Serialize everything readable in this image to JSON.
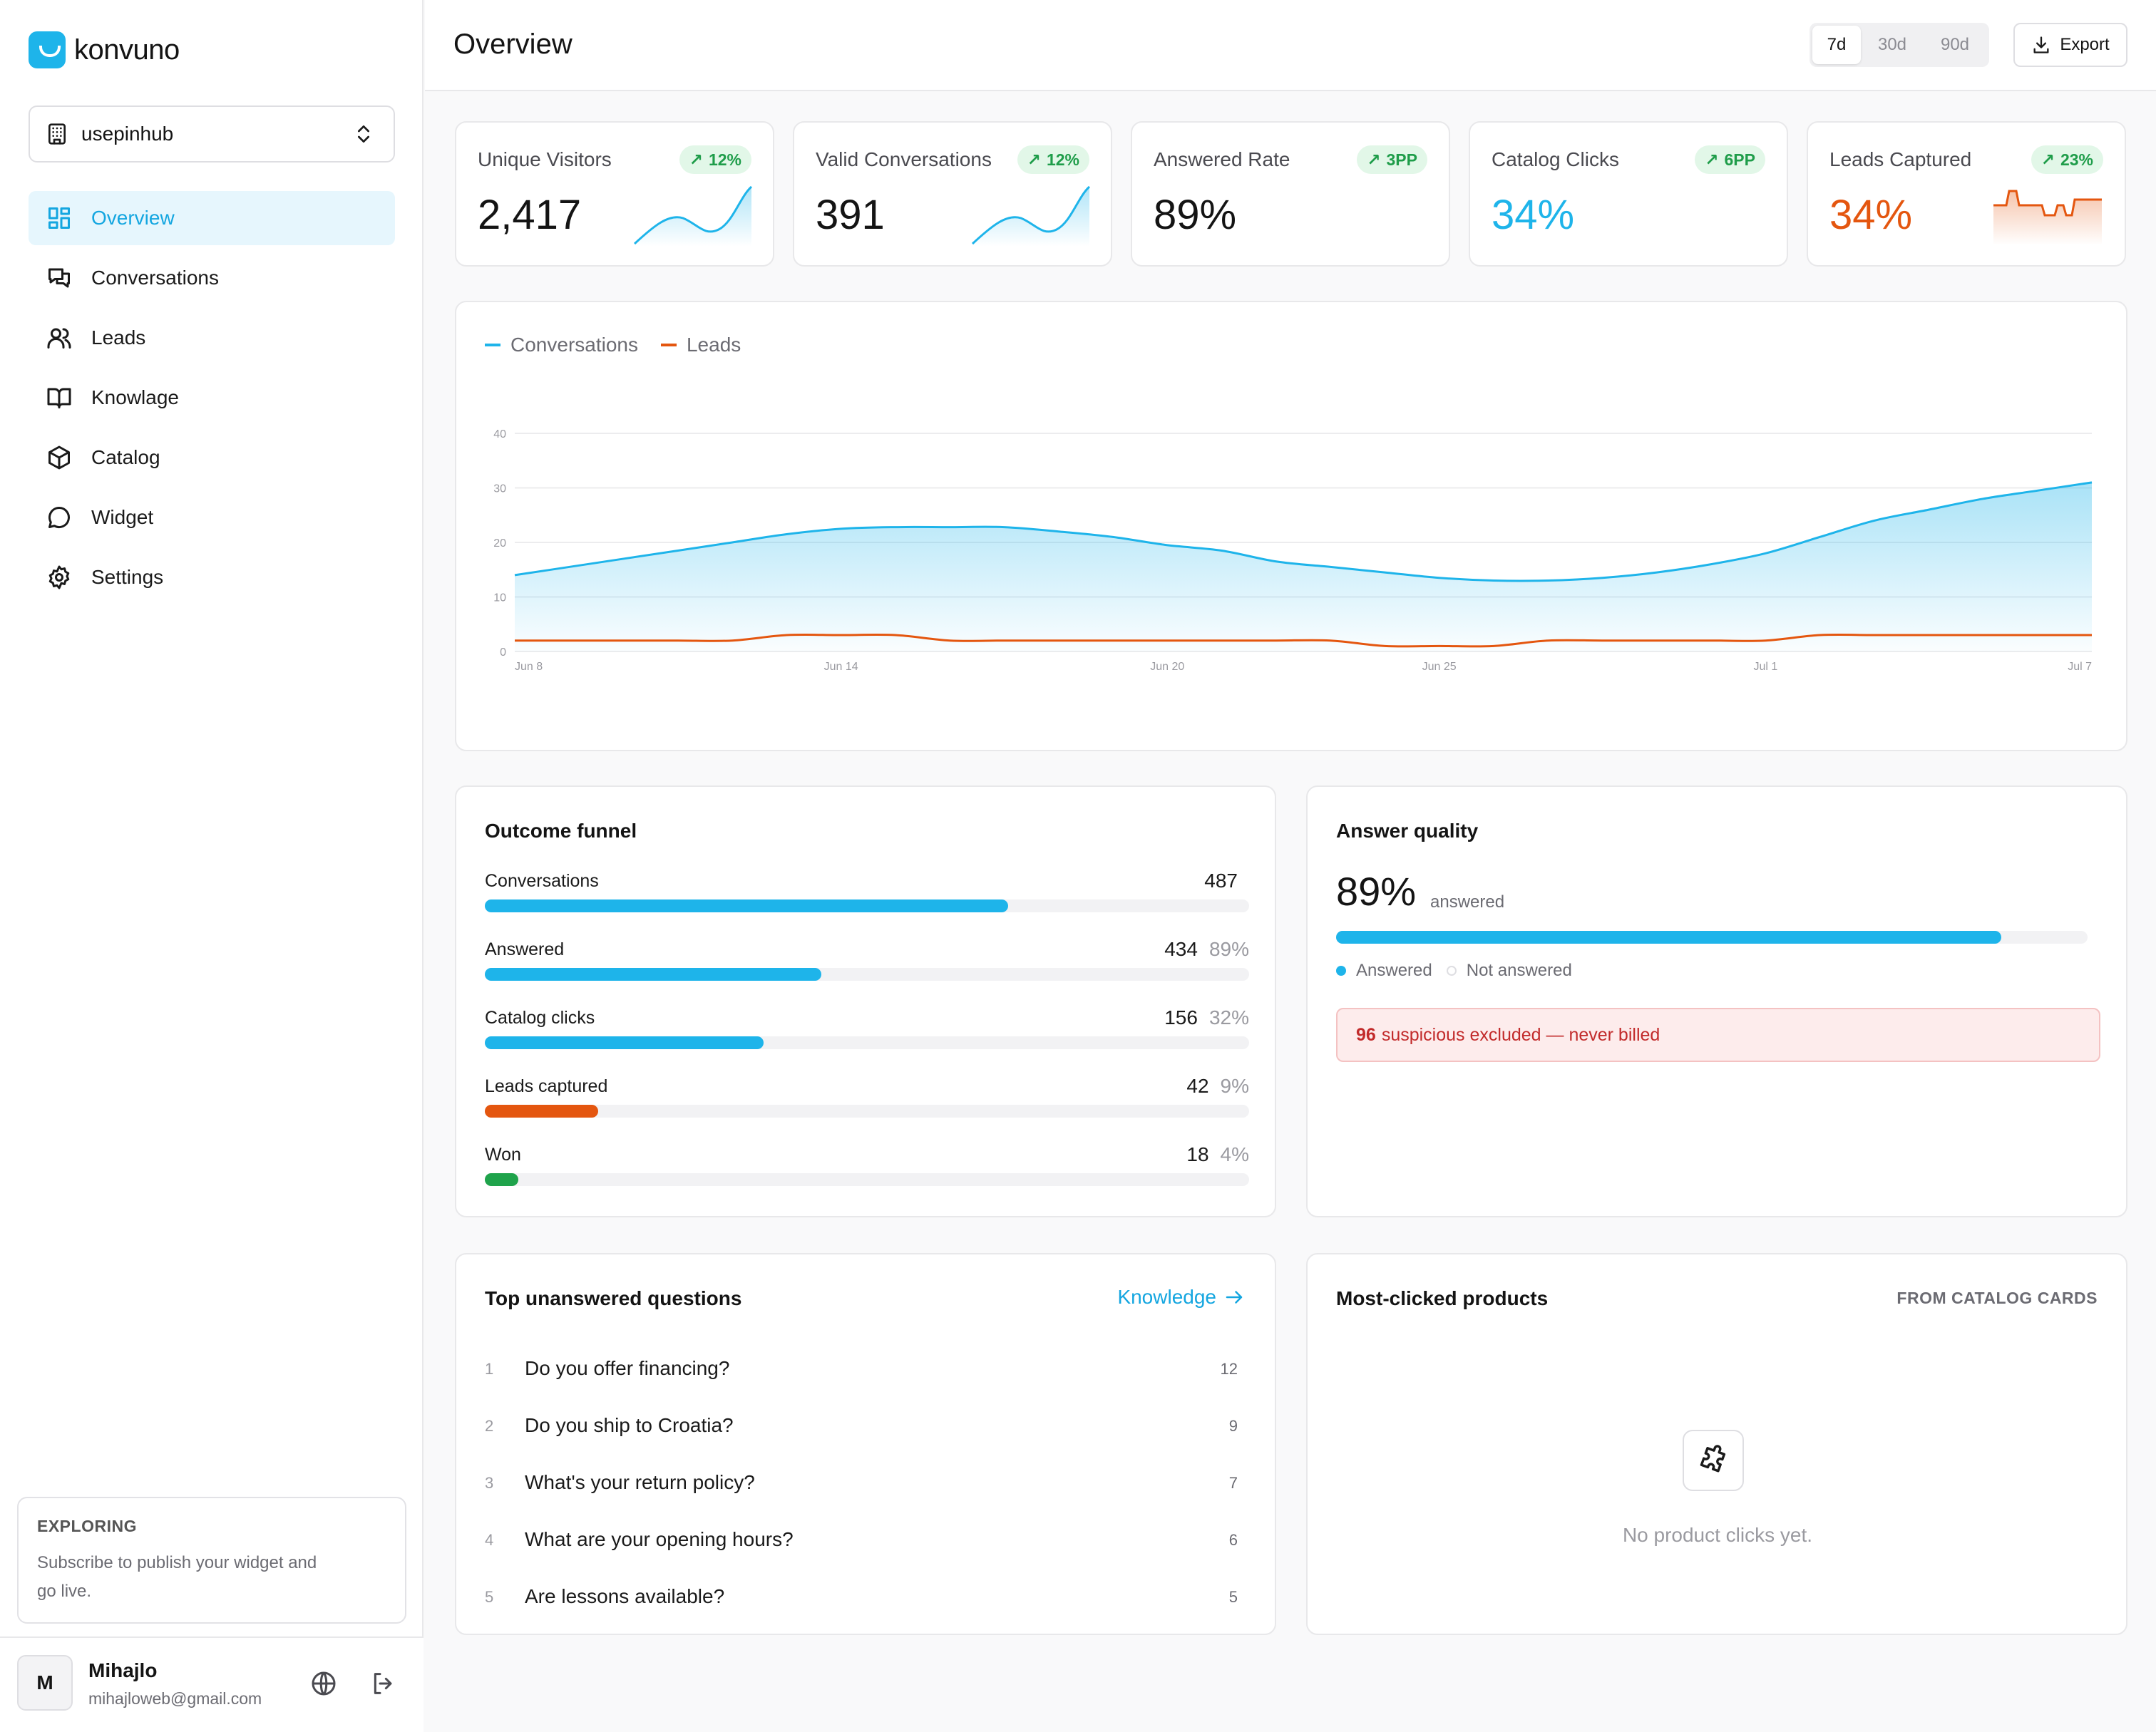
{
  "brand": {
    "name": "konvuno",
    "accent": "#1eb4ea"
  },
  "workspace": {
    "name": "usepinhub",
    "icon": "building-icon"
  },
  "nav": [
    {
      "label": "Overview",
      "icon": "grid-icon",
      "active": true
    },
    {
      "label": "Conversations",
      "icon": "chat-icon",
      "active": false
    },
    {
      "label": "Leads",
      "icon": "users-icon",
      "active": false
    },
    {
      "label": "Knowlage",
      "icon": "book-icon",
      "active": false
    },
    {
      "label": "Catalog",
      "icon": "box-icon",
      "active": false
    },
    {
      "label": "Widget",
      "icon": "message-circle-icon",
      "active": false
    },
    {
      "label": "Settings",
      "icon": "gear-icon",
      "active": false
    }
  ],
  "exploring": {
    "title": "EXPLORING",
    "text": "Subscribe to publish your widget and go live."
  },
  "user": {
    "initial": "M",
    "name": "Mihajlo",
    "email": "mihajloweb@gmail.com"
  },
  "header": {
    "title": "Overview",
    "ranges": [
      {
        "label": "7d",
        "active": true
      },
      {
        "label": "30d",
        "active": false
      },
      {
        "label": "90d",
        "active": false
      }
    ],
    "export_label": "Export"
  },
  "kpis": [
    {
      "title": "Unique Visitors",
      "badge": "12%",
      "value": "2,417",
      "value_color": "#141414",
      "spark_color": "#1eb4ea"
    },
    {
      "title": "Valid Conversations",
      "badge": "12%",
      "value": "391",
      "value_color": "#141414",
      "spark_color": "#1eb4ea"
    },
    {
      "title": "Answered Rate",
      "badge": "3PP",
      "value": "89%",
      "value_color": "#141414",
      "spark_color": ""
    },
    {
      "title": "Catalog Clicks",
      "badge": "6PP",
      "value": "34%",
      "value_color": "#1eb4ea",
      "spark_color": ""
    },
    {
      "title": "Leads Captured",
      "badge": "23%",
      "value": "34%",
      "value_color": "#e4560f",
      "spark_color": "#e4560f"
    }
  ],
  "chart_data": {
    "type": "area",
    "x": [
      "Jun 8",
      "Jun 9",
      "Jun 10",
      "Jun 11",
      "Jun 12",
      "Jun 13",
      "Jun 14",
      "Jun 15",
      "Jun 16",
      "Jun 17",
      "Jun 18",
      "Jun 19",
      "Jun 20",
      "Jun 21",
      "Jun 22",
      "Jun 23",
      "Jun 24",
      "Jun 25",
      "Jun 26",
      "Jun 27",
      "Jun 28",
      "Jun 29",
      "Jun 30",
      "Jul 1",
      "Jul 2",
      "Jul 3",
      "Jul 4",
      "Jul 5",
      "Jul 6",
      "Jul 7"
    ],
    "tick_labels": [
      "Jun 8",
      "Jun 14",
      "Jun 20",
      "Jun 25",
      "Jul 1",
      "Jul 7"
    ],
    "y_ticks": [
      0,
      10,
      20,
      30,
      40
    ],
    "ylim": [
      0,
      40
    ],
    "grid": true,
    "legend": "top-left",
    "series": [
      {
        "name": "Conversations",
        "color": "#1eb4ea",
        "values": [
          14,
          15.5,
          17,
          18.5,
          20,
          21.5,
          22.5,
          22.8,
          22.8,
          22.8,
          22,
          21,
          19.5,
          18.5,
          16.5,
          15.5,
          14.5,
          13.5,
          13,
          13,
          13.5,
          14.5,
          16,
          18,
          21,
          24,
          26,
          28,
          29.5,
          31
        ]
      },
      {
        "name": "Leads",
        "color": "#e4560f",
        "values": [
          2,
          2,
          2,
          2,
          2,
          3,
          3,
          3,
          2,
          2,
          2,
          2,
          2,
          2,
          2,
          2,
          1,
          1,
          1,
          2,
          2,
          2,
          2,
          2,
          3,
          3,
          3,
          3,
          3,
          3
        ]
      }
    ]
  },
  "funnel": {
    "title": "Outcome funnel",
    "rows": [
      {
        "label": "Conversations",
        "value": "487",
        "pct": "",
        "fill": 0.685,
        "color": "#1eb4ea"
      },
      {
        "label": "Answered",
        "value": "434",
        "pct": "89%",
        "fill": 0.44,
        "color": "#1eb4ea"
      },
      {
        "label": "Catalog clicks",
        "value": "156",
        "pct": "32%",
        "fill": 0.365,
        "color": "#1eb4ea"
      },
      {
        "label": "Leads captured",
        "value": "42",
        "pct": "9%",
        "fill": 0.148,
        "color": "#e4560f"
      },
      {
        "label": "Won",
        "value": "18",
        "pct": "4%",
        "fill": 0.044,
        "color": "#1fa34b"
      }
    ]
  },
  "answer_quality": {
    "title": "Answer quality",
    "value": "89%",
    "unit": "answered",
    "fill": 0.885,
    "legend": [
      "Answered",
      "Not answered"
    ],
    "alert_count": "96",
    "alert_text": "suspicious excluded — never billed"
  },
  "questions": {
    "title": "Top unanswered questions",
    "link": "Knowledge",
    "rows": [
      {
        "num": "1",
        "text": "Do you offer financing?",
        "count": "12"
      },
      {
        "num": "2",
        "text": "Do you ship to Croatia?",
        "count": "9"
      },
      {
        "num": "3",
        "text": "What's your return policy?",
        "count": "7"
      },
      {
        "num": "4",
        "text": "What are your opening hours?",
        "count": "6"
      },
      {
        "num": "5",
        "text": "Are lessons available?",
        "count": "5"
      }
    ]
  },
  "products": {
    "title": "Most-clicked products",
    "subtitle": "FROM CATALOG CARDS",
    "empty_icon": "puzzle-icon",
    "empty_text": "No product clicks yet."
  }
}
